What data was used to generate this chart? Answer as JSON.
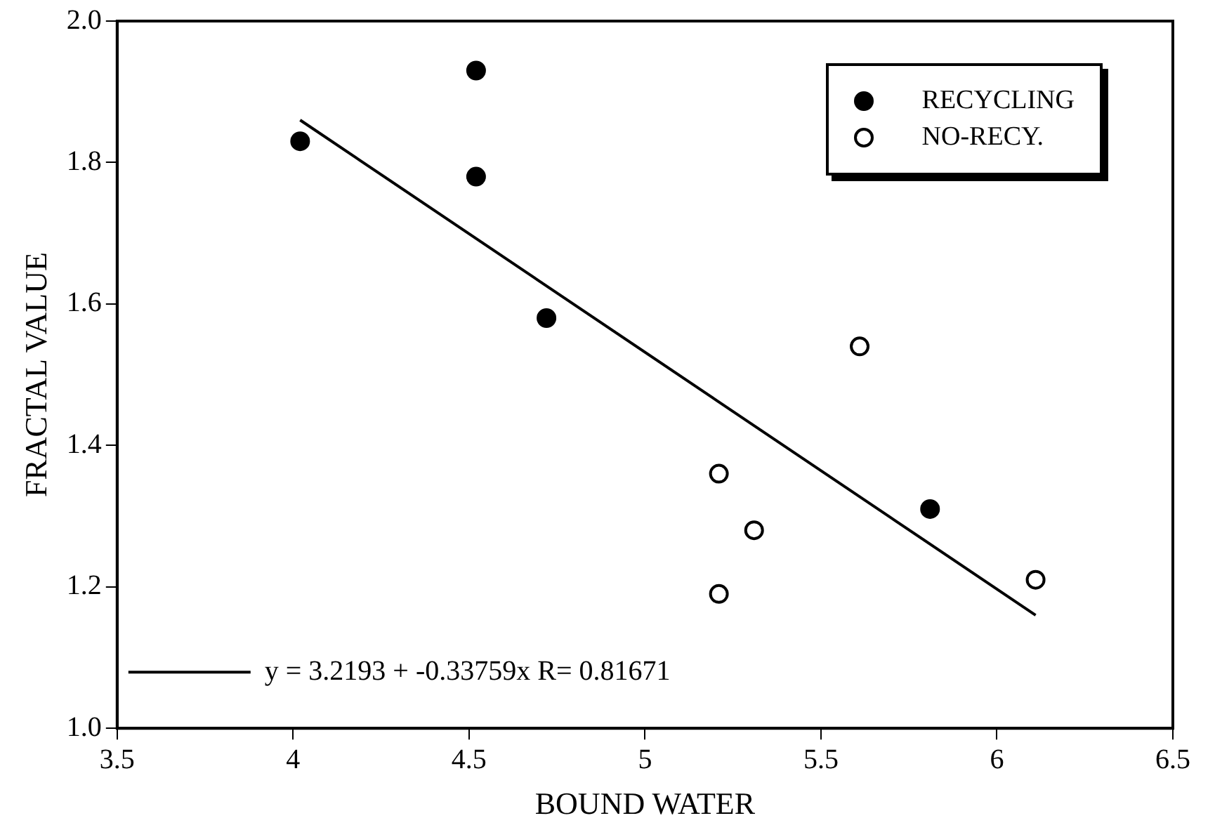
{
  "chart_data": {
    "type": "scatter",
    "xlabel": "BOUND WATER",
    "ylabel": "FRACTAL VALUE",
    "xlim": [
      3.5,
      6.5
    ],
    "xticks": [
      3.5,
      4,
      4.5,
      5,
      5.5,
      6,
      6.5
    ],
    "ylim": [
      1.0,
      2.0
    ],
    "yticks": [
      {
        "value": 1.0,
        "label": "1.0"
      },
      1.2,
      1.4,
      1.6,
      1.8,
      {
        "value": 2.0,
        "label": "2.0"
      }
    ],
    "grid": false,
    "legend": "top right",
    "marker": "circle",
    "series": [
      {
        "name": "RECYCLING",
        "color": "#000000",
        "x": [
          4.02,
          4.52,
          4.52,
          4.72,
          5.81
        ],
        "values": [
          1.83,
          1.93,
          1.78,
          1.58,
          1.31
        ]
      },
      {
        "name": "NO-RECY.",
        "color": "#ffffff",
        "x": [
          5.21,
          5.21,
          5.31,
          5.61,
          6.11
        ],
        "values": [
          1.36,
          1.19,
          1.28,
          1.54,
          1.21
        ]
      },
      {
        "type": "line",
        "color": "#000000",
        "line_style": "solid",
        "marker": "none",
        "x": [
          4.02,
          6.11
        ],
        "values": [
          1.86,
          1.16
        ]
      }
    ],
    "annotations": [
      "y = 3.2193 + -0.33759x R= 0.81671"
    ]
  }
}
